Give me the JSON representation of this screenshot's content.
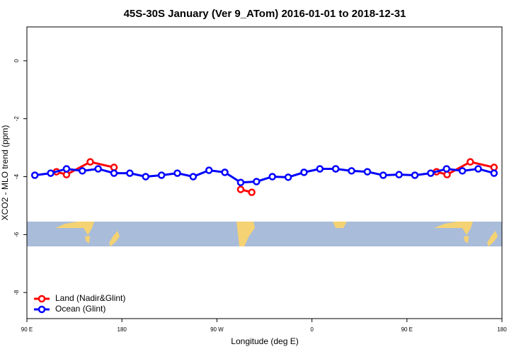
{
  "chart_data": {
    "type": "line",
    "title": "45S-30S January (Ver 9_ATom)   2016-01-01 to 2018-12-31",
    "x_label": "Longitude (deg E)",
    "y_label": "XCO2 - MLO trend (ppm)",
    "xlim": [
      90,
      540
    ],
    "xticks": [
      {
        "value": 90,
        "label": "90 E"
      },
      180,
      {
        "value": 270,
        "label": "90 W"
      },
      {
        "value": 360,
        "label": "0"
      },
      {
        "value": 450,
        "label": "90 E"
      },
      {
        "value": 540,
        "label": "180"
      }
    ],
    "ylim": [
      -8.9,
      1.17
    ],
    "yticks": [
      0,
      -2,
      -4,
      -6,
      -8
    ],
    "legend": "bottom-left",
    "series": [
      {
        "name": "Land (Nadir&Glint)",
        "color": "#ff0000",
        "x": [
          118,
          127.5,
          150,
          172.5,
          null,
          292.5,
          303,
          null,
          382.5,
          null,
          478,
          488,
          510,
          532.5
        ],
        "values": [
          -3.83,
          -3.93,
          -3.49,
          -3.68,
          null,
          -4.44,
          -4.54,
          null,
          -3.73,
          null,
          -3.83,
          -3.93,
          -3.49,
          -3.68
        ]
      },
      {
        "name": "Ocean (Glint)",
        "color": "#0000ff",
        "x": [
          97.5,
          112.5,
          127.5,
          142.5,
          157.5,
          172.5,
          187.5,
          202.5,
          217.5,
          232.5,
          247.5,
          262.5,
          277.5,
          292.5,
          307.5,
          322.5,
          337.5,
          352.5,
          367.5,
          382.5,
          397.5,
          412.5,
          427.5,
          442.5,
          457.5,
          472.5,
          487.5,
          502.5,
          517.5,
          532.5
        ],
        "values": [
          -3.95,
          -3.88,
          -3.73,
          -3.8,
          -3.73,
          -3.88,
          -3.88,
          -4.0,
          -3.95,
          -3.88,
          -4.0,
          -3.78,
          -3.85,
          -4.2,
          -4.17,
          -4.0,
          -4.02,
          -3.85,
          -3.73,
          -3.73,
          -3.8,
          -3.83,
          -3.95,
          -3.93,
          -3.95,
          -3.88,
          -3.73,
          -3.8,
          -3.73,
          -3.88
        ]
      }
    ]
  }
}
